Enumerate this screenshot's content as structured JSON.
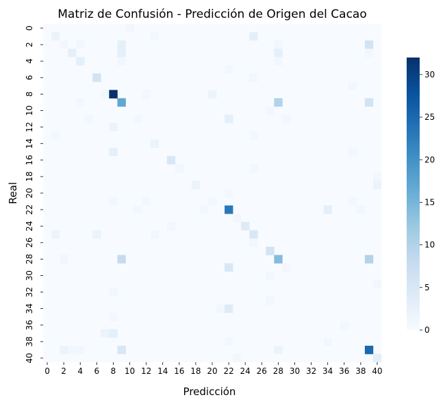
{
  "chart_data": {
    "type": "heatmap",
    "title": "Matriz de Confusión - Predicción de Origen del Cacao",
    "xlabel": "Predicción",
    "ylabel": "Real",
    "n": 41,
    "x_ticks": [
      "0",
      "2",
      "4",
      "6",
      "8",
      "10",
      "12",
      "14",
      "16",
      "18",
      "20",
      "22",
      "24",
      "26",
      "28",
      "30",
      "32",
      "34",
      "36",
      "38",
      "40"
    ],
    "y_ticks": [
      "0",
      "2",
      "4",
      "6",
      "8",
      "10",
      "12",
      "14",
      "16",
      "18",
      "20",
      "22",
      "24",
      "26",
      "28",
      "30",
      "32",
      "34",
      "36",
      "38",
      "40"
    ],
    "colorbar_ticks": [
      "0",
      "5",
      "10",
      "15",
      "20",
      "25",
      "30"
    ],
    "colorbar_range": [
      0,
      32
    ],
    "colormap": [
      "#f7fbff",
      "#deebf7",
      "#c6dbef",
      "#9ecae1",
      "#6baed6",
      "#4292c6",
      "#2171b5",
      "#08519c",
      "#08306b"
    ],
    "cells": [
      [
        0,
        10,
        1
      ],
      [
        1,
        1,
        2
      ],
      [
        1,
        13,
        1
      ],
      [
        1,
        25,
        3
      ],
      [
        2,
        2,
        1
      ],
      [
        2,
        4,
        1
      ],
      [
        2,
        9,
        3
      ],
      [
        2,
        28,
        1
      ],
      [
        2,
        39,
        6
      ],
      [
        3,
        3,
        3
      ],
      [
        3,
        9,
        3
      ],
      [
        3,
        28,
        3
      ],
      [
        3,
        39,
        1
      ],
      [
        4,
        4,
        3
      ],
      [
        4,
        9,
        1
      ],
      [
        4,
        28,
        1
      ],
      [
        5,
        22,
        1
      ],
      [
        6,
        6,
        6
      ],
      [
        6,
        25,
        1
      ],
      [
        7,
        37,
        1
      ],
      [
        8,
        7,
        1
      ],
      [
        8,
        8,
        32
      ],
      [
        8,
        12,
        1
      ],
      [
        8,
        20,
        2
      ],
      [
        9,
        4,
        1
      ],
      [
        9,
        9,
        17
      ],
      [
        9,
        28,
        10
      ],
      [
        9,
        39,
        6
      ],
      [
        10,
        27,
        1
      ],
      [
        11,
        5,
        1
      ],
      [
        11,
        11,
        1
      ],
      [
        11,
        22,
        3
      ],
      [
        11,
        29,
        1
      ],
      [
        12,
        8,
        2
      ],
      [
        13,
        1,
        1
      ],
      [
        13,
        25,
        1
      ],
      [
        14,
        13,
        2
      ],
      [
        15,
        8,
        3
      ],
      [
        15,
        37,
        1
      ],
      [
        16,
        15,
        5
      ],
      [
        17,
        16,
        1
      ],
      [
        17,
        25,
        1
      ],
      [
        18,
        40,
        1
      ],
      [
        19,
        18,
        2
      ],
      [
        19,
        40,
        2
      ],
      [
        20,
        22,
        1
      ],
      [
        21,
        8,
        1
      ],
      [
        21,
        12,
        1
      ],
      [
        21,
        20,
        1
      ],
      [
        21,
        37,
        1
      ],
      [
        22,
        11,
        1
      ],
      [
        22,
        19,
        1
      ],
      [
        22,
        22,
        23
      ],
      [
        22,
        34,
        3
      ],
      [
        22,
        38,
        1
      ],
      [
        23,
        23,
        1
      ],
      [
        24,
        15,
        1
      ],
      [
        24,
        24,
        4
      ],
      [
        25,
        1,
        2
      ],
      [
        25,
        6,
        2
      ],
      [
        25,
        13,
        1
      ],
      [
        25,
        25,
        5
      ],
      [
        26,
        25,
        1
      ],
      [
        27,
        27,
        6
      ],
      [
        28,
        2,
        1
      ],
      [
        28,
        9,
        8
      ],
      [
        28,
        28,
        14
      ],
      [
        28,
        39,
        10
      ],
      [
        29,
        22,
        5
      ],
      [
        29,
        29,
        1
      ],
      [
        30,
        27,
        1
      ],
      [
        31,
        40,
        1
      ],
      [
        32,
        8,
        1
      ],
      [
        33,
        27,
        1
      ],
      [
        34,
        21,
        1
      ],
      [
        34,
        22,
        4
      ],
      [
        35,
        8,
        1
      ],
      [
        36,
        36,
        1
      ],
      [
        37,
        7,
        2
      ],
      [
        37,
        8,
        3
      ],
      [
        38,
        22,
        1
      ],
      [
        38,
        34,
        1
      ],
      [
        39,
        2,
        2
      ],
      [
        39,
        3,
        1
      ],
      [
        39,
        4,
        1
      ],
      [
        39,
        9,
        5
      ],
      [
        39,
        28,
        2
      ],
      [
        39,
        39,
        25
      ],
      [
        40,
        23,
        1
      ],
      [
        40,
        40,
        3
      ]
    ]
  }
}
